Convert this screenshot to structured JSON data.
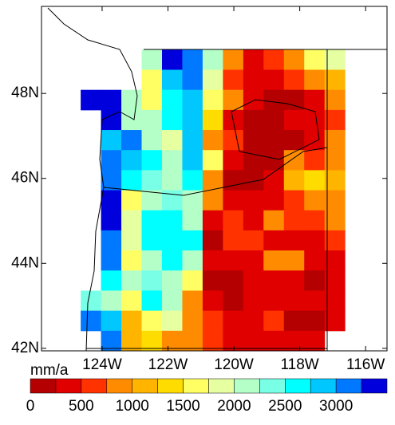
{
  "chart_data": {
    "type": "gridmap",
    "xlim": [
      -125.84,
      -115.35
    ],
    "ylim": [
      41.94,
      50.05
    ],
    "xticks": [
      {
        "value": -124,
        "label": "124W"
      },
      {
        "value": -122,
        "label": "122W"
      },
      {
        "value": -120,
        "label": "120W"
      },
      {
        "value": -118,
        "label": "118W"
      },
      {
        "value": -116,
        "label": "116W"
      }
    ],
    "yticks": [
      {
        "value": 42,
        "label": "42N"
      },
      {
        "value": 44,
        "label": "44N"
      },
      {
        "value": 46,
        "label": "46N"
      },
      {
        "value": 48,
        "label": "48N"
      }
    ],
    "grid_lon": [
      -124.65,
      -116.63
    ],
    "grid_lat": [
      49.03,
      41.94
    ],
    "grid": [
      [
        null,
        null,
        null,
        2125,
        3375,
        3125,
        2125,
        875,
        375,
        625,
        875,
        1625,
        1875
      ],
      [
        null,
        null,
        null,
        1625,
        2875,
        3125,
        1875,
        625,
        375,
        375,
        625,
        875,
        1125
      ],
      [
        3375,
        3375,
        2125,
        1625,
        2625,
        2875,
        1625,
        875,
        375,
        125,
        125,
        375,
        875
      ],
      [
        null,
        3375,
        2125,
        2125,
        2625,
        2875,
        1375,
        375,
        125,
        125,
        375,
        375,
        625
      ],
      [
        null,
        2875,
        3125,
        2125,
        1875,
        2875,
        875,
        625,
        125,
        125,
        125,
        375,
        875
      ],
      [
        null,
        3125,
        2875,
        2625,
        2125,
        2875,
        1625,
        375,
        125,
        125,
        875,
        625,
        875
      ],
      [
        null,
        3125,
        2625,
        2375,
        2125,
        2625,
        875,
        125,
        125,
        375,
        1125,
        1375,
        1125
      ],
      [
        null,
        3375,
        1625,
        2125,
        2375,
        2125,
        875,
        375,
        375,
        375,
        625,
        875,
        875
      ],
      [
        null,
        3375,
        1875,
        2625,
        2625,
        2125,
        375,
        625,
        375,
        875,
        625,
        625,
        875
      ],
      [
        null,
        3125,
        1875,
        2625,
        2625,
        2625,
        125,
        625,
        625,
        375,
        375,
        375,
        625
      ],
      [
        null,
        3125,
        1625,
        2125,
        2625,
        2125,
        375,
        375,
        375,
        875,
        875,
        375,
        375
      ],
      [
        null,
        2625,
        2125,
        2375,
        2125,
        1625,
        125,
        125,
        375,
        375,
        375,
        125,
        375
      ],
      [
        2375,
        2125,
        1625,
        2625,
        2125,
        875,
        375,
        125,
        375,
        375,
        375,
        375,
        375
      ],
      [
        3125,
        2875,
        1125,
        1625,
        1875,
        875,
        625,
        375,
        375,
        625,
        125,
        125,
        375
      ],
      [
        null,
        3125,
        1125,
        1375,
        875,
        875,
        625,
        375,
        375,
        375,
        375,
        375,
        null
      ]
    ],
    "colorbar": {
      "label": "mm/a",
      "levels": [
        0,
        250,
        500,
        750,
        1000,
        1250,
        1500,
        1750,
        2000,
        2250,
        2500,
        2750,
        3000,
        3250,
        3500
      ],
      "colors": [
        "#b40000",
        "#e00000",
        "#ff3200",
        "#ff8c00",
        "#ffb400",
        "#ffdc00",
        "#ffff64",
        "#e6ffa0",
        "#b4ffc8",
        "#78ffe6",
        "#00ffff",
        "#00c8ff",
        "#0078ff",
        "#0000dc"
      ],
      "ticks": [
        0,
        500,
        1000,
        1500,
        2000,
        2500,
        3000
      ]
    }
  }
}
